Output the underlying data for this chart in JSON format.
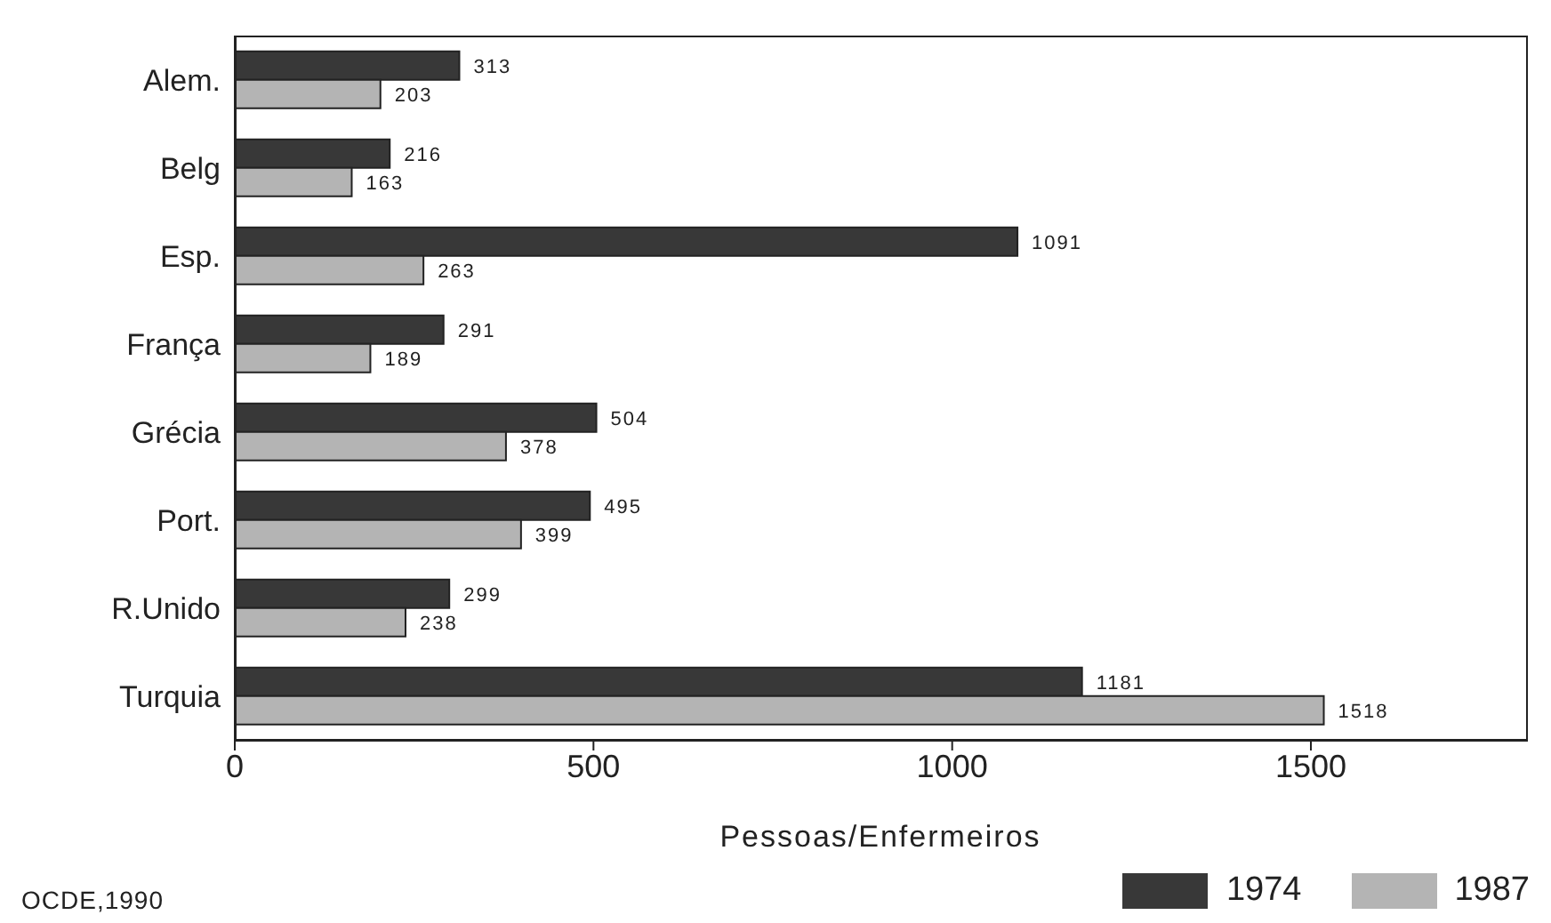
{
  "chart_data": {
    "type": "bar",
    "orientation": "horizontal",
    "categories": [
      "Alem.",
      "Belg",
      "Esp.",
      "França",
      "Grécia",
      "Port.",
      "R.Unido",
      "Turquia"
    ],
    "series": [
      {
        "name": "1974",
        "color": "#383838",
        "values": [
          313,
          216,
          1091,
          291,
          504,
          495,
          299,
          1181
        ]
      },
      {
        "name": "1987",
        "color": "#b4b4b4",
        "values": [
          203,
          163,
          263,
          189,
          378,
          399,
          238,
          1518
        ]
      }
    ],
    "xlim": [
      0,
      1800
    ],
    "xticks": [
      0,
      500,
      1000,
      1500
    ],
    "xlabel": "Pessoas/Enfermeiros",
    "data_labels": true,
    "grid": false,
    "legend": "bottom right",
    "annotations": [
      "OCDE,1990"
    ]
  }
}
